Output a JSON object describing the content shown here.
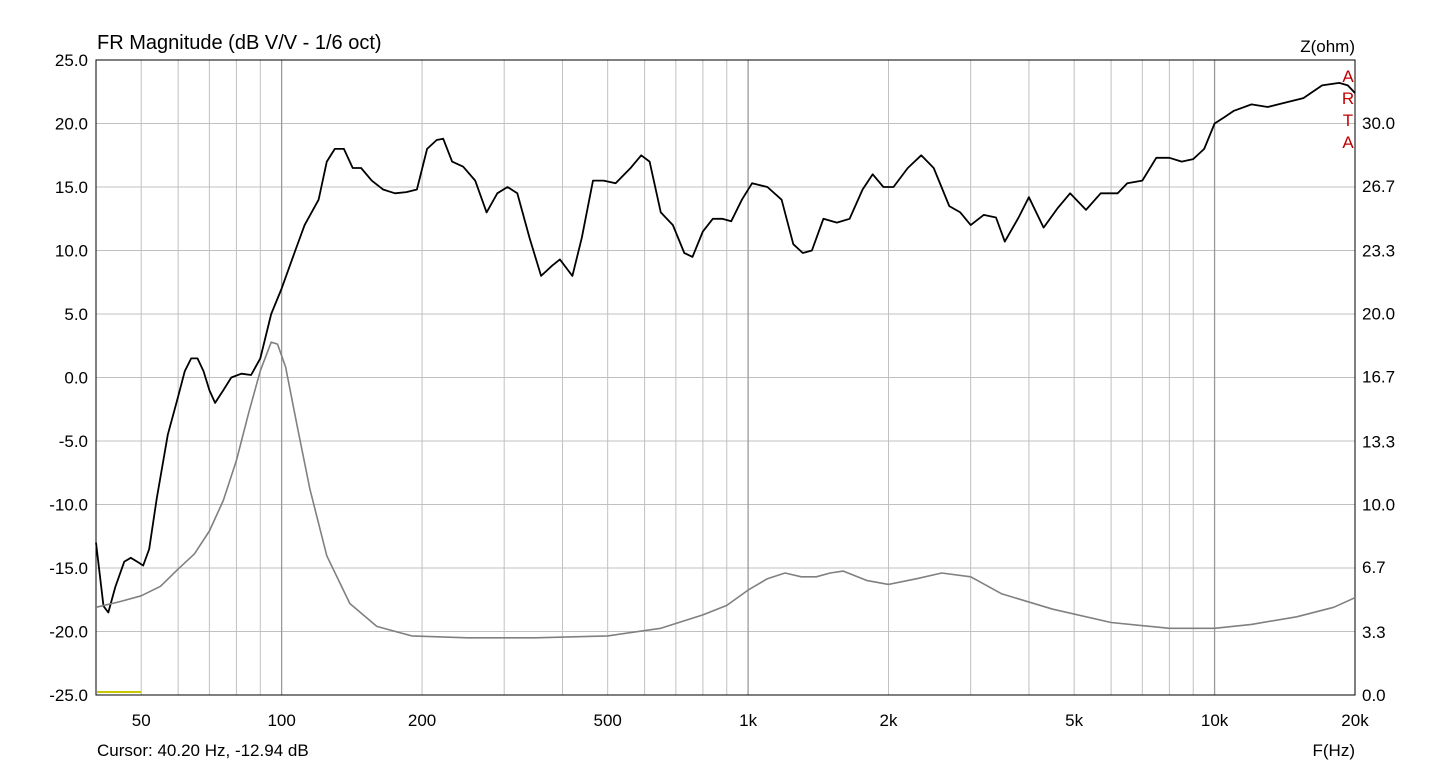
{
  "chart_data": {
    "type": "line",
    "title": "FR Magnitude (dB V/V - 1/6 oct)",
    "xlabel": "F(Hz)",
    "ylabel_right": "Z(ohm)",
    "x_scale": "log",
    "xlim": [
      40,
      20000
    ],
    "ylim": [
      -25,
      25
    ],
    "y2lim": [
      0,
      33.3
    ],
    "grid": true,
    "x_ticks": [
      {
        "v": 50,
        "label": "50"
      },
      {
        "v": 100,
        "label": "100"
      },
      {
        "v": 200,
        "label": "200"
      },
      {
        "v": 500,
        "label": "500"
      },
      {
        "v": 1000,
        "label": "1k"
      },
      {
        "v": 2000,
        "label": "2k"
      },
      {
        "v": 5000,
        "label": "5k"
      },
      {
        "v": 10000,
        "label": "10k"
      },
      {
        "v": 20000,
        "label": "20k"
      }
    ],
    "x_minor_grid": [
      60,
      70,
      80,
      90,
      300,
      400,
      600,
      700,
      800,
      900,
      3000,
      4000,
      6000,
      7000,
      8000,
      9000
    ],
    "y_ticks": [
      {
        "v": 25,
        "label": "25.0"
      },
      {
        "v": 20,
        "label": "20.0"
      },
      {
        "v": 15,
        "label": "15.0"
      },
      {
        "v": 10,
        "label": "10.0"
      },
      {
        "v": 5,
        "label": "5.0"
      },
      {
        "v": 0,
        "label": "0.0"
      },
      {
        "v": -5,
        "label": "-5.0"
      },
      {
        "v": -10,
        "label": "-10.0"
      },
      {
        "v": -15,
        "label": "-15.0"
      },
      {
        "v": -20,
        "label": "-20.0"
      },
      {
        "v": -25,
        "label": "-25.0"
      }
    ],
    "y2_ticks": [
      {
        "v": 30.0,
        "label": "30.0"
      },
      {
        "v": 26.7,
        "label": "26.7"
      },
      {
        "v": 23.3,
        "label": "23.3"
      },
      {
        "v": 20.0,
        "label": "20.0"
      },
      {
        "v": 16.7,
        "label": "16.7"
      },
      {
        "v": 13.3,
        "label": "13.3"
      },
      {
        "v": 10.0,
        "label": "10.0"
      },
      {
        "v": 6.7,
        "label": "6.7"
      },
      {
        "v": 3.3,
        "label": "3.3"
      },
      {
        "v": 0.0,
        "label": "0.0"
      }
    ],
    "series": [
      {
        "name": "",
        "axis": "left",
        "color": "#000000",
        "points": [
          [
            40,
            -13
          ],
          [
            41.5,
            -18
          ],
          [
            42.5,
            -18.5
          ],
          [
            44,
            -16.5
          ],
          [
            46,
            -14.5
          ],
          [
            47.5,
            -14.2
          ],
          [
            49,
            -14.5
          ],
          [
            50.5,
            -14.8
          ],
          [
            52,
            -13.5
          ],
          [
            54,
            -9.5
          ],
          [
            57,
            -4.5
          ],
          [
            60,
            -1.5
          ],
          [
            62,
            0.5
          ],
          [
            64,
            1.5
          ],
          [
            66,
            1.5
          ],
          [
            68,
            0.5
          ],
          [
            70,
            -1
          ],
          [
            72,
            -2
          ],
          [
            75,
            -1
          ],
          [
            78,
            0
          ],
          [
            82,
            0.3
          ],
          [
            86,
            0.2
          ],
          [
            90,
            1.5
          ],
          [
            95,
            5
          ],
          [
            100,
            7
          ],
          [
            107,
            10
          ],
          [
            112,
            12
          ],
          [
            120,
            14
          ],
          [
            125,
            17
          ],
          [
            130,
            18
          ],
          [
            136,
            18
          ],
          [
            142,
            16.5
          ],
          [
            148,
            16.5
          ],
          [
            156,
            15.5
          ],
          [
            165,
            14.8
          ],
          [
            175,
            14.5
          ],
          [
            185,
            14.6
          ],
          [
            195,
            14.8
          ],
          [
            205,
            18
          ],
          [
            215,
            18.7
          ],
          [
            222,
            18.8
          ],
          [
            232,
            17
          ],
          [
            245,
            16.6
          ],
          [
            260,
            15.5
          ],
          [
            275,
            13
          ],
          [
            290,
            14.5
          ],
          [
            305,
            15
          ],
          [
            320,
            14.5
          ],
          [
            340,
            11
          ],
          [
            360,
            8
          ],
          [
            380,
            8.8
          ],
          [
            395,
            9.3
          ],
          [
            410,
            8.5
          ],
          [
            420,
            8
          ],
          [
            440,
            11
          ],
          [
            465,
            15.5
          ],
          [
            490,
            15.5
          ],
          [
            520,
            15.3
          ],
          [
            560,
            16.5
          ],
          [
            590,
            17.5
          ],
          [
            615,
            17
          ],
          [
            650,
            13
          ],
          [
            690,
            12
          ],
          [
            730,
            9.8
          ],
          [
            760,
            9.5
          ],
          [
            800,
            11.5
          ],
          [
            840,
            12.5
          ],
          [
            880,
            12.5
          ],
          [
            920,
            12.3
          ],
          [
            970,
            14
          ],
          [
            1020,
            15.3
          ],
          [
            1100,
            15
          ],
          [
            1180,
            14
          ],
          [
            1250,
            10.5
          ],
          [
            1310,
            9.8
          ],
          [
            1370,
            10
          ],
          [
            1450,
            12.5
          ],
          [
            1550,
            12.2
          ],
          [
            1650,
            12.5
          ],
          [
            1760,
            14.8
          ],
          [
            1850,
            16
          ],
          [
            1950,
            15
          ],
          [
            2050,
            15
          ],
          [
            2200,
            16.5
          ],
          [
            2350,
            17.5
          ],
          [
            2500,
            16.5
          ],
          [
            2700,
            13.5
          ],
          [
            2850,
            13
          ],
          [
            3000,
            12
          ],
          [
            3200,
            12.8
          ],
          [
            3400,
            12.6
          ],
          [
            3550,
            10.7
          ],
          [
            3800,
            12.6
          ],
          [
            4000,
            14.2
          ],
          [
            4300,
            11.8
          ],
          [
            4600,
            13.3
          ],
          [
            4900,
            14.5
          ],
          [
            5300,
            13.2
          ],
          [
            5700,
            14.5
          ],
          [
            6200,
            14.5
          ],
          [
            6500,
            15.3
          ],
          [
            7000,
            15.5
          ],
          [
            7500,
            17.3
          ],
          [
            8000,
            17.3
          ],
          [
            8500,
            17
          ],
          [
            9000,
            17.2
          ],
          [
            9500,
            18
          ],
          [
            10000,
            20
          ],
          [
            10500,
            20.5
          ],
          [
            11000,
            21
          ],
          [
            12000,
            21.5
          ],
          [
            13000,
            21.3
          ],
          [
            14000,
            21.6
          ],
          [
            15500,
            22
          ],
          [
            17000,
            23
          ],
          [
            18500,
            23.2
          ],
          [
            19300,
            23
          ],
          [
            20000,
            22.4
          ]
        ]
      },
      {
        "name": "",
        "axis": "right",
        "color": "#808080",
        "points": [
          [
            40,
            4.6
          ],
          [
            45,
            4.9
          ],
          [
            50,
            5.2
          ],
          [
            55,
            5.7
          ],
          [
            60,
            6.6
          ],
          [
            65,
            7.4
          ],
          [
            70,
            8.6
          ],
          [
            75,
            10.2
          ],
          [
            80,
            12.3
          ],
          [
            85,
            14.8
          ],
          [
            90,
            17.0
          ],
          [
            95,
            18.5
          ],
          [
            98,
            18.4
          ],
          [
            102,
            17.2
          ],
          [
            108,
            14.1
          ],
          [
            115,
            10.8
          ],
          [
            125,
            7.3
          ],
          [
            140,
            4.8
          ],
          [
            160,
            3.6
          ],
          [
            190,
            3.1
          ],
          [
            250,
            3.0
          ],
          [
            350,
            3.0
          ],
          [
            500,
            3.1
          ],
          [
            650,
            3.5
          ],
          [
            800,
            4.2
          ],
          [
            900,
            4.7
          ],
          [
            1000,
            5.5
          ],
          [
            1100,
            6.1
          ],
          [
            1200,
            6.4
          ],
          [
            1300,
            6.2
          ],
          [
            1400,
            6.2
          ],
          [
            1500,
            6.4
          ],
          [
            1600,
            6.5
          ],
          [
            1800,
            6.0
          ],
          [
            2000,
            5.8
          ],
          [
            2300,
            6.1
          ],
          [
            2600,
            6.4
          ],
          [
            3000,
            6.2
          ],
          [
            3500,
            5.3
          ],
          [
            4500,
            4.5
          ],
          [
            6000,
            3.8
          ],
          [
            8000,
            3.5
          ],
          [
            10000,
            3.5
          ],
          [
            12000,
            3.7
          ],
          [
            15000,
            4.1
          ],
          [
            18000,
            4.6
          ],
          [
            20000,
            5.1
          ]
        ]
      }
    ]
  },
  "cursor_text": "Cursor: 40.20 Hz, -12.94 dB",
  "watermark": [
    "A",
    "R",
    "T",
    "A"
  ],
  "colors": {
    "grid": "#c0c0c0",
    "axes": "#000000",
    "magnitude": "#000000",
    "impedance": "#808080",
    "watermark": "#c00000",
    "cursor_marker": "#c8c800"
  }
}
